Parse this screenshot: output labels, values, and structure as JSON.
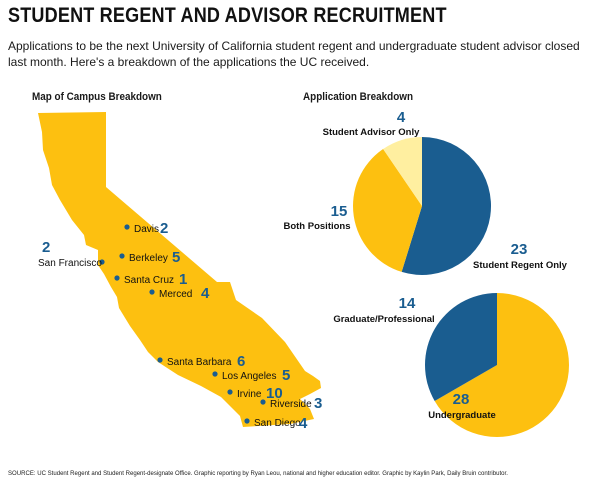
{
  "header": {
    "title": "STUDENT REGENT AND ADVISOR RECRUITMENT",
    "subtitle": "Applications to be the next University of California student regent and undergraduate student advisor closed last month. Here's a breakdown of the applications the UC received."
  },
  "colors": {
    "yellow": "#FDC010",
    "light_yellow": "#FFEFA0",
    "blue": "#1A5D90",
    "number_blue": "#1A5D90",
    "text": "#1a1a1a"
  },
  "footer": {
    "source": "SOURCE: UC Student Regent and Student Regent-designate Office. Graphic reporting by Ryan Leou, national and higher education editor. Graphic by Kaylin Park, Daily Bruin contributor."
  },
  "chart_data": [
    {
      "type": "map",
      "title": "Map of Campus Breakdown",
      "region": "California",
      "points": [
        {
          "name": "Davis",
          "value": 2
        },
        {
          "name": "San Francisco",
          "value": 2
        },
        {
          "name": "Berkeley",
          "value": 5
        },
        {
          "name": "Santa Cruz",
          "value": 1
        },
        {
          "name": "Merced",
          "value": 4
        },
        {
          "name": "Santa Barbara",
          "value": 6
        },
        {
          "name": "Los Angeles",
          "value": 5
        },
        {
          "name": "Irvine",
          "value": 10
        },
        {
          "name": "Riverside",
          "value": 3
        },
        {
          "name": "San Diego",
          "value": 4
        }
      ]
    },
    {
      "type": "pie",
      "title": "Application Breakdown",
      "slices": [
        {
          "label": "Student Regent Only",
          "value": 23,
          "color": "#1A5D90"
        },
        {
          "label": "Both Positions",
          "value": 15,
          "color": "#FDC010"
        },
        {
          "label": "Student Advisor Only",
          "value": 4,
          "color": "#FFEFA0"
        }
      ]
    },
    {
      "type": "pie",
      "title": "",
      "slices": [
        {
          "label": "Undergraduate",
          "value": 28,
          "color": "#FDC010"
        },
        {
          "label": "Graduate/Professional",
          "value": 14,
          "color": "#1A5D90"
        }
      ]
    }
  ]
}
